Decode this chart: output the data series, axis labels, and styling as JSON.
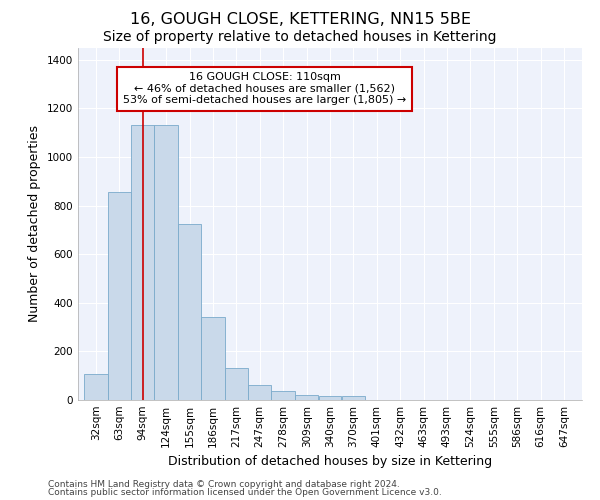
{
  "title": "16, GOUGH CLOSE, KETTERING, NN15 5BE",
  "subtitle": "Size of property relative to detached houses in Kettering",
  "xlabel": "Distribution of detached houses by size in Kettering",
  "ylabel": "Number of detached properties",
  "bar_color": "#c9d9ea",
  "bar_edge_color": "#7aaacb",
  "bin_labels": [
    "32sqm",
    "63sqm",
    "94sqm",
    "124sqm",
    "155sqm",
    "186sqm",
    "217sqm",
    "247sqm",
    "278sqm",
    "309sqm",
    "340sqm",
    "370sqm",
    "401sqm",
    "432sqm",
    "463sqm",
    "493sqm",
    "524sqm",
    "555sqm",
    "586sqm",
    "616sqm",
    "647sqm"
  ],
  "bar_values": [
    105,
    855,
    1130,
    1130,
    725,
    340,
    130,
    62,
    35,
    20,
    18,
    17,
    0,
    0,
    0,
    0,
    0,
    0,
    0,
    0,
    0
  ],
  "bin_edges": [
    32,
    63,
    94,
    124,
    155,
    186,
    217,
    247,
    278,
    309,
    340,
    370,
    401,
    432,
    463,
    493,
    524,
    555,
    586,
    616,
    647,
    678
  ],
  "property_size": 110,
  "red_line_color": "#cc0000",
  "annotation_line1": "16 GOUGH CLOSE: 110sqm",
  "annotation_line2": "← 46% of detached houses are smaller (1,562)",
  "annotation_line3": "53% of semi-detached houses are larger (1,805) →",
  "annotation_box_color": "#ffffff",
  "annotation_box_edge": "#cc0000",
  "ylim": [
    0,
    1450
  ],
  "yticks": [
    0,
    200,
    400,
    600,
    800,
    1000,
    1200,
    1400
  ],
  "footnote1": "Contains HM Land Registry data © Crown copyright and database right 2024.",
  "footnote2": "Contains public sector information licensed under the Open Government Licence v3.0.",
  "bg_color": "#eef2fb",
  "plot_bg_color": "#eef2fb",
  "grid_color": "#ffffff",
  "title_fontsize": 11.5,
  "subtitle_fontsize": 10,
  "axis_label_fontsize": 9,
  "tick_fontsize": 7.5,
  "annotation_fontsize": 8,
  "footnote_fontsize": 6.5
}
